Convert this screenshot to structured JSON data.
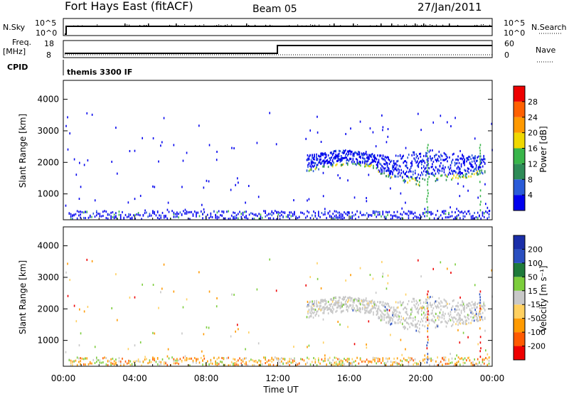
{
  "header": {
    "station": "Fort Hays East (fitACF)",
    "beam": "Beam 05",
    "date": "27/Jan/2011"
  },
  "top_panels": {
    "nsky_label": "N.Sky",
    "nsky_ticks": [
      "10^5",
      "10^0"
    ],
    "nsearch_label": "N.Search",
    "nsearch_ticks": [
      "10^5",
      "10^0"
    ],
    "freq_label": "Freq.",
    "freq_unit": "[MHz]",
    "freq_ticks": [
      "18",
      "8"
    ],
    "nave_label": "Nave",
    "nave_ticks": [
      "60",
      "0"
    ],
    "cpid_label": "CPID",
    "cpid_value": "themis 3300 IF"
  },
  "colors": {
    "power": [
      "#0000ee",
      "#2a5bd8",
      "#2e8b57",
      "#39b54a",
      "#f0d800",
      "#ff9900",
      "#ff6000",
      "#ee0000"
    ],
    "velocity": [
      "#1a2ea8",
      "#2a4fc0",
      "#1e7a3a",
      "#7ccd3c",
      "#c8c8c8",
      "#ffd060",
      "#ff9a00",
      "#ff5a00",
      "#ee0000"
    ]
  },
  "chart_data": [
    {
      "type": "heatmap",
      "name": "power",
      "xlabel": "",
      "ylabel": "Slant Range [km]",
      "xlim": [
        0,
        24
      ],
      "ylim": [
        180,
        4600
      ],
      "yticks": [
        "1000",
        "2000",
        "3000",
        "4000"
      ],
      "colorbar_label": "Power [dB]",
      "colorbar_ticks": [
        "4",
        "8",
        "12",
        "16",
        "20",
        "24",
        "28"
      ],
      "features": [
        {
          "region": "near-range band",
          "x": [
            0.3,
            23.8
          ],
          "y": [
            200,
            450
          ],
          "dominant": "blue"
        },
        {
          "region": "ionospheric band",
          "x": [
            13.5,
            23.8
          ],
          "y": [
            1500,
            2400
          ],
          "dominant": "blue with green/yellow lower edge"
        },
        {
          "region": "scattered points",
          "x": [
            0,
            24
          ],
          "y": [
            200,
            3600
          ],
          "dominant": "blue"
        }
      ]
    },
    {
      "type": "heatmap",
      "name": "velocity",
      "xlabel": "Time UT",
      "ylabel": "Slant Range [km]",
      "xlim": [
        0,
        24
      ],
      "ylim": [
        180,
        4600
      ],
      "xticks": [
        "00:00",
        "04:00",
        "08:00",
        "12:00",
        "16:00",
        "20:00",
        "00:00"
      ],
      "yticks": [
        "1000",
        "2000",
        "3000",
        "4000"
      ],
      "colorbar_label": "Velocity [m s⁻¹]",
      "colorbar_ticks": [
        "200",
        "100",
        "50",
        "15",
        "-15",
        "-50",
        "-100",
        "-200"
      ],
      "features": [
        {
          "region": "near-range band",
          "x": [
            0.3,
            23.8
          ],
          "y": [
            200,
            450
          ],
          "dominant": "orange/yellow"
        },
        {
          "region": "ionospheric band",
          "x": [
            13.5,
            23.8
          ],
          "y": [
            1500,
            2400
          ],
          "dominant": "grey (ground scatter)"
        }
      ]
    }
  ]
}
